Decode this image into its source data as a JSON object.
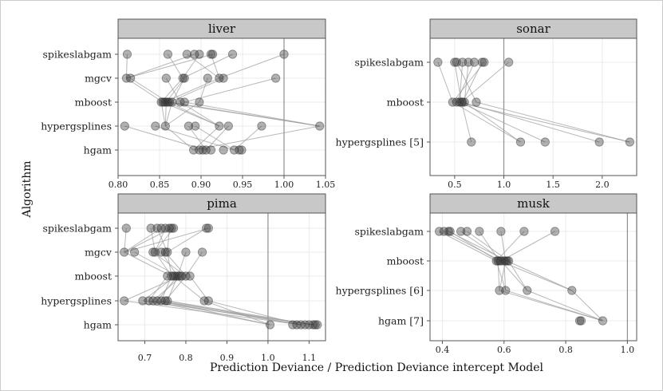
{
  "chart_data": {
    "type": "scatter",
    "title": "",
    "xlabel": "Prediction Deviance / Prediction Deviance intercept Model",
    "ylabel": "Algorithm",
    "colors": {
      "point": "#333333",
      "line": "#9a9a9a",
      "strip": "#c8c8c8",
      "grid": "#ebebeb",
      "refline": "#8f8f8f"
    },
    "panels": [
      {
        "name": "liver",
        "xlim": [
          0.8,
          1.05
        ],
        "xticks": [
          0.8,
          0.85,
          0.9,
          0.95,
          1.0,
          1.05
        ],
        "xtick_labels": [
          "0.80",
          "0.85",
          "0.90",
          "0.95",
          "1.00",
          "1.05"
        ],
        "refline": 1.0,
        "categories": [
          "spikeslabgam",
          "mgcv",
          "mboost",
          "hypergsplines",
          "hgam"
        ],
        "points": {
          "spikeslabgam": [
            0.811,
            0.86,
            0.883,
            0.892,
            0.898,
            0.912,
            0.914,
            0.938,
            1.0
          ],
          "mgcv": [
            0.81,
            0.815,
            0.858,
            0.878,
            0.88,
            0.908,
            0.922,
            0.927,
            0.99
          ],
          "mboost": [
            0.852,
            0.854,
            0.856,
            0.858,
            0.86,
            0.862,
            0.865,
            0.875,
            0.88,
            0.898
          ],
          "hypergsplines": [
            0.808,
            0.845,
            0.857,
            0.885,
            0.893,
            0.922,
            0.933,
            0.973,
            1.043
          ],
          "hgam": [
            0.891,
            0.898,
            0.902,
            0.906,
            0.912,
            0.927,
            0.94,
            0.946,
            0.949
          ]
        }
      },
      {
        "name": "sonar",
        "xlim": [
          0.25,
          2.35
        ],
        "xticks": [
          0.5,
          1.0,
          1.5,
          2.0
        ],
        "xtick_labels": [
          "0.5",
          "1.0",
          "1.5",
          "2.0"
        ],
        "refline": 1.0,
        "categories": [
          "spikeslabgam",
          "mboost",
          "hypergsplines [5]"
        ],
        "points": {
          "spikeslabgam": [
            0.33,
            0.5,
            0.52,
            0.58,
            0.64,
            0.7,
            0.78,
            0.8,
            1.05
          ],
          "mboost": [
            0.48,
            0.52,
            0.55,
            0.57,
            0.58,
            0.6,
            0.72
          ],
          "hypergsplines [5]": [
            0.67,
            1.17,
            1.42,
            1.97,
            2.28
          ]
        }
      },
      {
        "name": "pima",
        "xlim": [
          0.635,
          1.14
        ],
        "xticks": [
          0.7,
          0.8,
          0.9,
          1.0,
          1.1
        ],
        "xtick_labels": [
          "0.7",
          "0.8",
          "0.9",
          "1.0",
          "1.1"
        ],
        "refline": 1.0,
        "categories": [
          "spikeslabgam",
          "mgcv",
          "mboost",
          "hypergsplines",
          "hgam"
        ],
        "points": {
          "spikeslabgam": [
            0.655,
            0.715,
            0.73,
            0.74,
            0.75,
            0.76,
            0.765,
            0.77,
            0.85,
            0.855
          ],
          "mgcv": [
            0.65,
            0.675,
            0.72,
            0.725,
            0.74,
            0.75,
            0.755,
            0.8,
            0.84
          ],
          "mboost": [
            0.755,
            0.765,
            0.77,
            0.775,
            0.78,
            0.785,
            0.79,
            0.8,
            0.81
          ],
          "hypergsplines": [
            0.65,
            0.695,
            0.71,
            0.72,
            0.73,
            0.74,
            0.75,
            0.755,
            0.845,
            0.855
          ],
          "hgam": [
            1.005,
            1.06,
            1.07,
            1.08,
            1.09,
            1.1,
            1.11,
            1.115,
            1.12
          ]
        }
      },
      {
        "name": "musk",
        "xlim": [
          0.36,
          1.03
        ],
        "xticks": [
          0.4,
          0.6,
          0.8,
          1.0
        ],
        "xtick_labels": [
          "0.4",
          "0.6",
          "0.8",
          "1.0"
        ],
        "refline": 1.0,
        "categories": [
          "spikeslabgam",
          "mboost",
          "hypergsplines [6]",
          "hgam [7]"
        ],
        "points": {
          "spikeslabgam": [
            0.39,
            0.405,
            0.42,
            0.425,
            0.46,
            0.48,
            0.52,
            0.59,
            0.665,
            0.765
          ],
          "mboost": [
            0.575,
            0.58,
            0.585,
            0.59,
            0.6,
            0.605,
            0.61,
            0.615
          ],
          "hypergsplines [6]": [
            0.585,
            0.605,
            0.675,
            0.82
          ],
          "hgam [7]": [
            0.845,
            0.85,
            0.92
          ]
        }
      }
    ]
  }
}
